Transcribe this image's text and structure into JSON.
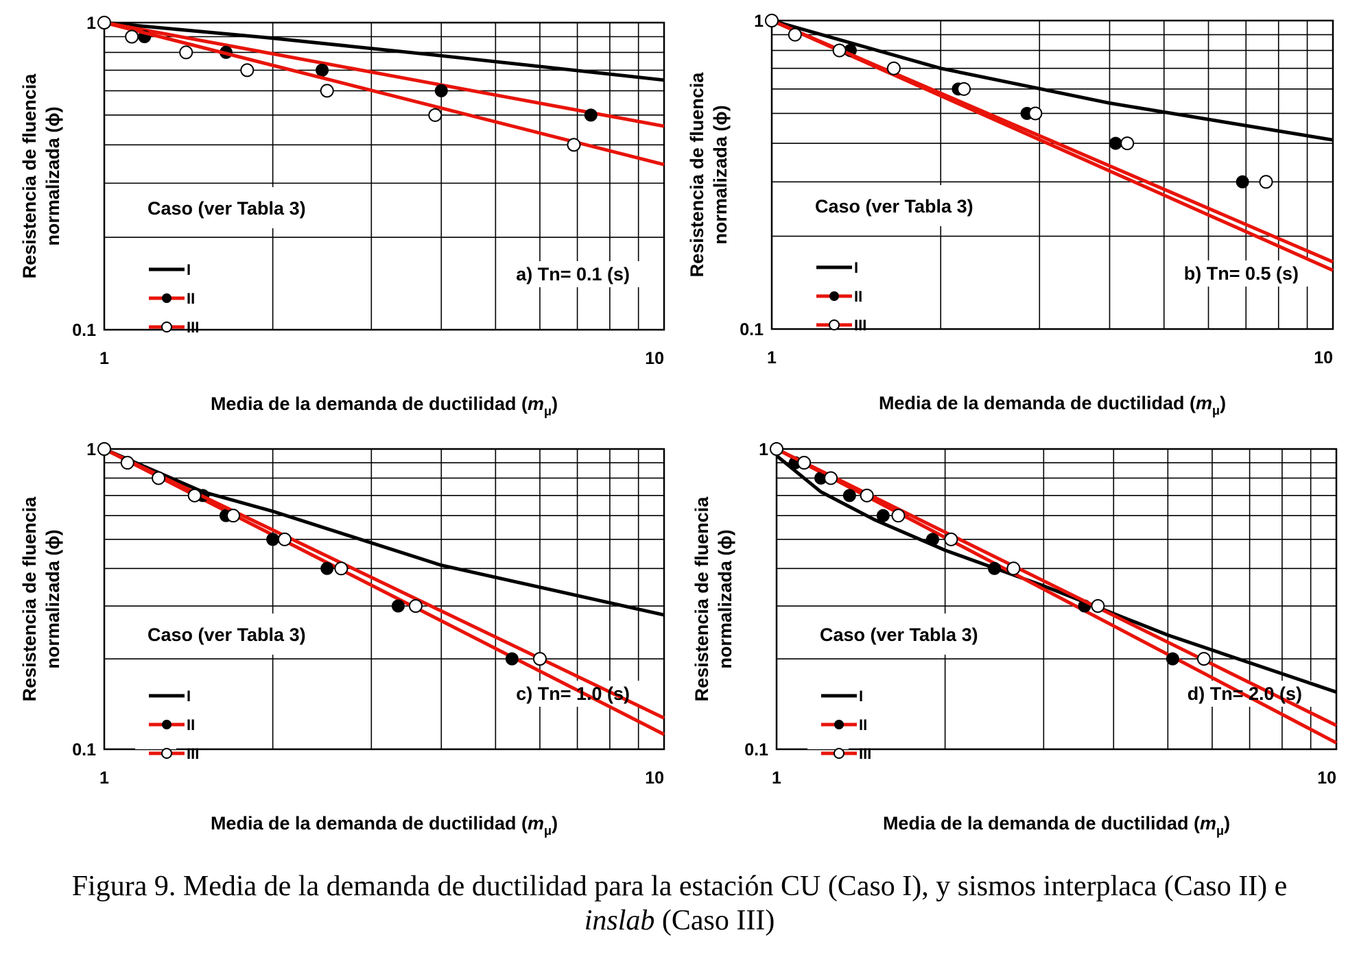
{
  "colors": {
    "caso_I": "#000000",
    "caso_II": "#e8140a",
    "caso_III": "#e8140a"
  },
  "caption": {
    "line1": "Figura 9.  Media de la demanda de ductilidad para la estación CU (Caso I), y sismos interplaca (Caso II) e",
    "line2_italic": "inslab",
    "line2_rest": " (Caso III)"
  },
  "chart_data": [
    {
      "type": "line",
      "panel_label": "a) Tn= 0.1 (s)",
      "xlabel_prefix": "Media de la demanda de ductilidad (",
      "xlabel_var": "m",
      "xlabel_sub": "μ",
      "xlabel_suffix": ")",
      "ylabel_line1": "Resistencia de fluencia",
      "ylabel_line2": "normalizada (ϕ)",
      "x_scale": "log",
      "y_scale": "log",
      "xlim": [
        1,
        10
      ],
      "ylim": [
        0.1,
        1
      ],
      "x_ticks": [
        "1",
        "10"
      ],
      "y_ticks": [
        "0.1",
        "1"
      ],
      "grid": true,
      "legend_title": "Caso (ver Tabla 3)",
      "legend_location": "lower-left",
      "series": [
        {
          "name": "I",
          "marker": "none",
          "curve": [
            [
              1,
              1
            ],
            [
              2,
              0.89
            ],
            [
              4,
              0.78
            ],
            [
              10,
              0.65
            ]
          ],
          "points": []
        },
        {
          "name": "II",
          "marker": "filled",
          "curve": [
            [
              1,
              1
            ],
            [
              10,
              0.46
            ]
          ],
          "points": [
            [
              1.18,
              0.9
            ],
            [
              1.65,
              0.8
            ],
            [
              2.45,
              0.7
            ],
            [
              4.0,
              0.6
            ],
            [
              7.4,
              0.5
            ]
          ]
        },
        {
          "name": "III",
          "marker": "open",
          "curve": [
            [
              1,
              1
            ],
            [
              10,
              0.345
            ]
          ],
          "points": [
            [
              1,
              1
            ],
            [
              1.12,
              0.9
            ],
            [
              1.4,
              0.8
            ],
            [
              1.8,
              0.7
            ],
            [
              2.5,
              0.6
            ],
            [
              3.9,
              0.5
            ],
            [
              6.9,
              0.4
            ]
          ]
        }
      ]
    },
    {
      "type": "line",
      "panel_label": "b) Tn= 0.5 (s)",
      "xlabel_prefix": "Media de la demanda de ductilidad (",
      "xlabel_var": "m",
      "xlabel_sub": "μ",
      "xlabel_suffix": ")",
      "ylabel_line1": "Resistencia de fluencia",
      "ylabel_line2": "normalizada (ϕ)",
      "x_scale": "log",
      "y_scale": "log",
      "xlim": [
        1,
        10
      ],
      "ylim": [
        0.1,
        1
      ],
      "x_ticks": [
        "1",
        "10"
      ],
      "y_ticks": [
        "0.1",
        "1"
      ],
      "grid": true,
      "legend_title": "Caso (ver Tabla 3)",
      "legend_location": "lower-left",
      "series": [
        {
          "name": "I",
          "marker": "none",
          "curve": [
            [
              1,
              1
            ],
            [
              2,
              0.7
            ],
            [
              4,
              0.54
            ],
            [
              10,
              0.41
            ]
          ],
          "points": []
        },
        {
          "name": "II",
          "marker": "filled",
          "curve": [
            [
              1,
              1
            ],
            [
              10,
              0.155
            ]
          ],
          "points": [
            [
              1.1,
              0.9
            ],
            [
              1.38,
              0.8
            ],
            [
              1.65,
              0.7
            ],
            [
              2.15,
              0.6
            ],
            [
              2.85,
              0.5
            ],
            [
              4.1,
              0.4
            ],
            [
              6.9,
              0.3
            ]
          ]
        },
        {
          "name": "III",
          "marker": "open",
          "curve": [
            [
              1,
              1
            ],
            [
              10,
              0.165
            ]
          ],
          "points": [
            [
              1,
              1
            ],
            [
              1.1,
              0.9
            ],
            [
              1.32,
              0.8
            ],
            [
              1.65,
              0.7
            ],
            [
              2.2,
              0.6
            ],
            [
              2.95,
              0.5
            ],
            [
              4.3,
              0.4
            ],
            [
              7.6,
              0.3
            ]
          ]
        }
      ]
    },
    {
      "type": "line",
      "panel_label": "c) Tn= 1.0 (s)",
      "xlabel_prefix": "Media de la demanda de ductilidad (",
      "xlabel_var": "m",
      "xlabel_sub": "μ",
      "xlabel_suffix": ")",
      "ylabel_line1": "Resistencia de fluencia",
      "ylabel_line2": "normalizada (ϕ)",
      "x_scale": "log",
      "y_scale": "log",
      "xlim": [
        1,
        10
      ],
      "ylim": [
        0.1,
        1
      ],
      "x_ticks": [
        "1",
        "10"
      ],
      "y_ticks": [
        "0.1",
        "1"
      ],
      "grid": true,
      "legend_title": "Caso (ver Tabla 3)",
      "legend_location": "lower-left",
      "series": [
        {
          "name": "I",
          "marker": "none",
          "curve": [
            [
              1,
              1
            ],
            [
              1.5,
              0.72
            ],
            [
              2,
              0.62
            ],
            [
              4,
              0.41
            ],
            [
              10,
              0.28
            ]
          ],
          "points": []
        },
        {
          "name": "II",
          "marker": "filled",
          "curve": [
            [
              1,
              1
            ],
            [
              10,
              0.112
            ]
          ],
          "points": [
            [
              1.1,
              0.9
            ],
            [
              1.25,
              0.8
            ],
            [
              1.5,
              0.7
            ],
            [
              1.65,
              0.6
            ],
            [
              2.0,
              0.5
            ],
            [
              2.5,
              0.4
            ],
            [
              3.35,
              0.3
            ],
            [
              5.35,
              0.2
            ]
          ]
        },
        {
          "name": "III",
          "marker": "open",
          "curve": [
            [
              1,
              1
            ],
            [
              10,
              0.127
            ]
          ],
          "points": [
            [
              1,
              1
            ],
            [
              1.1,
              0.9
            ],
            [
              1.25,
              0.8
            ],
            [
              1.45,
              0.7
            ],
            [
              1.7,
              0.6
            ],
            [
              2.1,
              0.5
            ],
            [
              2.65,
              0.4
            ],
            [
              3.6,
              0.3
            ],
            [
              6.0,
              0.2
            ]
          ]
        }
      ]
    },
    {
      "type": "line",
      "panel_label": "d) Tn= 2.0 (s)",
      "xlabel_prefix": "Media de la demanda de ductilidad (",
      "xlabel_var": "m",
      "xlabel_sub": "μ",
      "xlabel_suffix": ")",
      "ylabel_line1": "Resistencia de fluencia",
      "ylabel_line2": "normalizada (ϕ)",
      "x_scale": "log",
      "y_scale": "log",
      "xlim": [
        1,
        10
      ],
      "ylim": [
        0.1,
        1
      ],
      "x_ticks": [
        "1",
        "10"
      ],
      "y_ticks": [
        "0.1",
        "1"
      ],
      "grid": true,
      "legend_title": "Caso (ver Tabla 3)",
      "legend_location": "lower-left",
      "series": [
        {
          "name": "I",
          "marker": "none",
          "curve": [
            [
              1,
              0.95
            ],
            [
              1.2,
              0.72
            ],
            [
              1.5,
              0.58
            ],
            [
              2,
              0.46
            ],
            [
              3,
              0.35
            ],
            [
              5,
              0.24
            ],
            [
              10,
              0.155
            ]
          ],
          "points": []
        },
        {
          "name": "II",
          "marker": "filled",
          "curve": [
            [
              1,
              1
            ],
            [
              10,
              0.105
            ]
          ],
          "points": [
            [
              1.08,
              0.9
            ],
            [
              1.2,
              0.8
            ],
            [
              1.35,
              0.7
            ],
            [
              1.55,
              0.6
            ],
            [
              1.9,
              0.5
            ],
            [
              2.45,
              0.4
            ],
            [
              3.55,
              0.3
            ],
            [
              5.1,
              0.2
            ]
          ]
        },
        {
          "name": "III",
          "marker": "open",
          "curve": [
            [
              1,
              1
            ],
            [
              10,
              0.12
            ]
          ],
          "points": [
            [
              1,
              1
            ],
            [
              1.12,
              0.9
            ],
            [
              1.25,
              0.8
            ],
            [
              1.45,
              0.7
            ],
            [
              1.65,
              0.6
            ],
            [
              2.05,
              0.5
            ],
            [
              2.65,
              0.4
            ],
            [
              3.75,
              0.3
            ],
            [
              5.8,
              0.2
            ]
          ]
        }
      ]
    }
  ]
}
